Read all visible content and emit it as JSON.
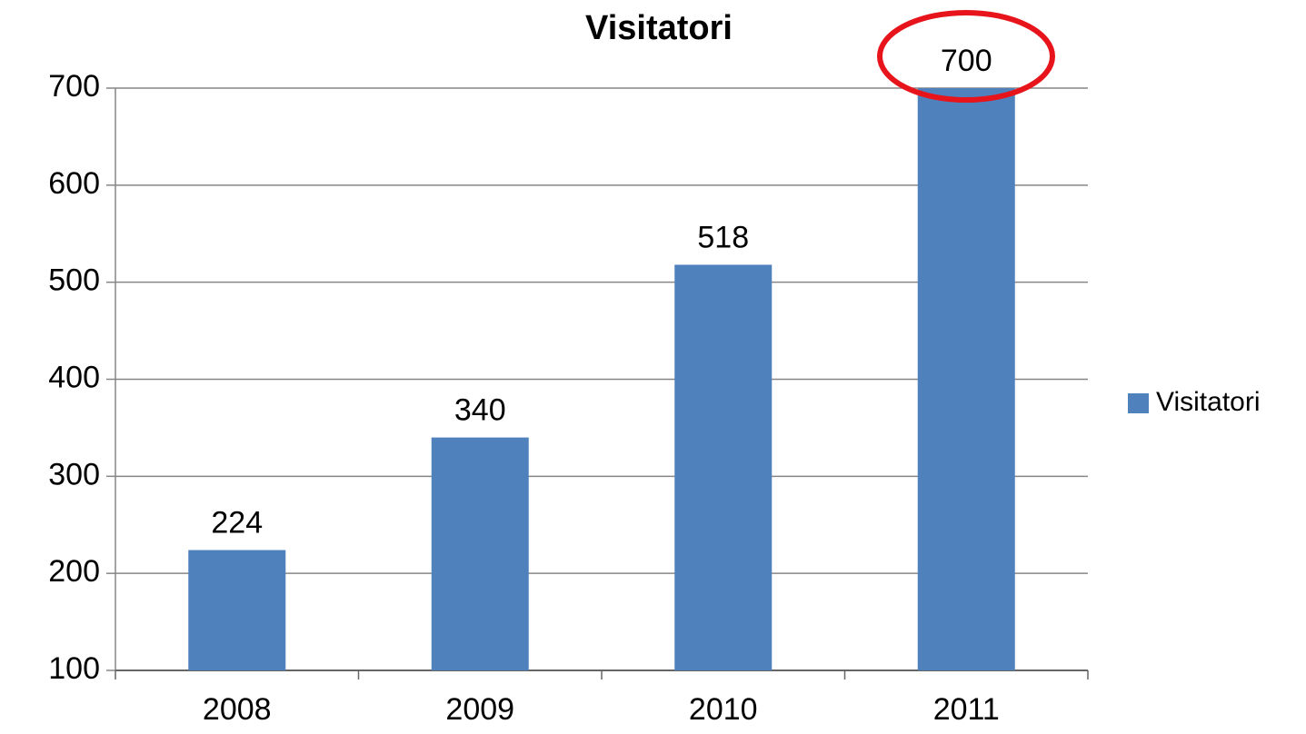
{
  "chart_data": {
    "type": "bar",
    "title": "Visitatori",
    "categories": [
      "2008",
      "2009",
      "2010",
      "2011"
    ],
    "series": [
      {
        "name": "Visitatori",
        "color": "#4f81bd",
        "values": [
          224,
          340,
          518,
          700
        ]
      }
    ],
    "ylim": [
      100,
      700
    ],
    "yticks": [
      100,
      200,
      300,
      400,
      500,
      600,
      700
    ],
    "grid": true,
    "legend": "right",
    "data_labels": true
  }
}
